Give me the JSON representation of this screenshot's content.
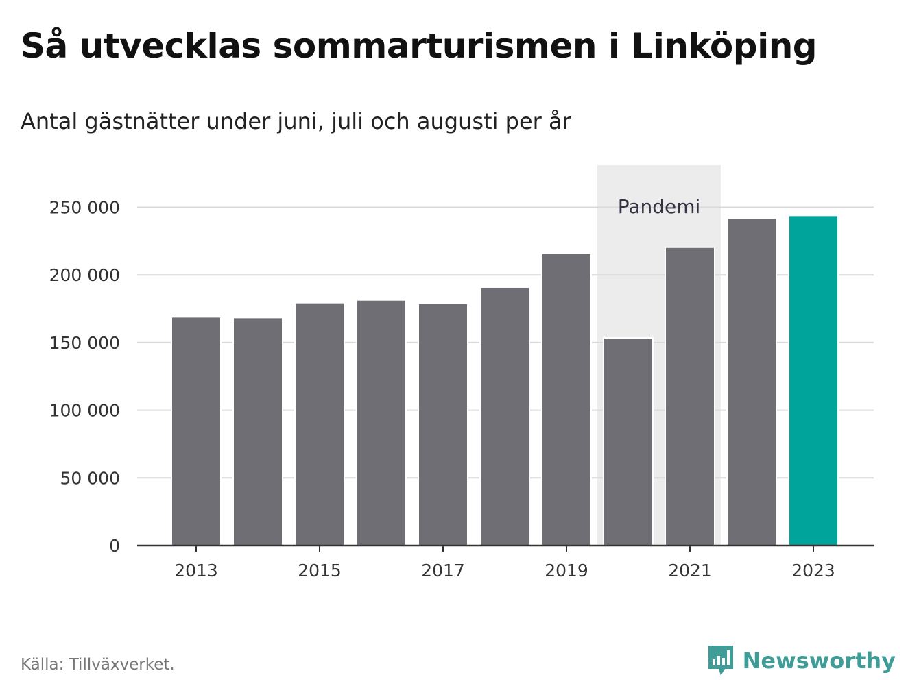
{
  "header": {
    "title": "Så utvecklas sommarturismen i Linköping",
    "subtitle": "Antal gästnätter under juni, juli och augusti per år"
  },
  "footer": {
    "source": "Källa: Tillväxverket.",
    "brand": "Newsworthy",
    "brand_icon": "bar-chart-speech-bubble-icon"
  },
  "colors": {
    "bar": "#6f6e74",
    "highlight": "#00a49a",
    "band": "#ececec",
    "brand": "#3f9c97"
  },
  "chart_data": {
    "type": "bar",
    "title": "Så utvecklas sommarturismen i Linköping",
    "subtitle": "Antal gästnätter under juni, juli och augusti per år",
    "categories": [
      "2013",
      "2014",
      "2015",
      "2016",
      "2017",
      "2018",
      "2019",
      "2020",
      "2021",
      "2022",
      "2023"
    ],
    "values": [
      169000,
      168500,
      179500,
      181500,
      179000,
      191000,
      216000,
      153500,
      220500,
      242000,
      244000
    ],
    "highlight_category": "2023",
    "ylim": [
      0,
      270000
    ],
    "yticks": [
      0,
      50000,
      100000,
      150000,
      200000,
      250000
    ],
    "ytick_labels": [
      "0",
      "50 000",
      "100 000",
      "150 000",
      "200 000",
      "250 000"
    ],
    "xtick_labels": [
      "2013",
      "2015",
      "2017",
      "2019",
      "2021",
      "2023"
    ],
    "grid": true,
    "legend": "none",
    "annotations": [
      {
        "label": "Pandemi",
        "from": "2020",
        "to": "2021",
        "type": "band"
      }
    ]
  }
}
